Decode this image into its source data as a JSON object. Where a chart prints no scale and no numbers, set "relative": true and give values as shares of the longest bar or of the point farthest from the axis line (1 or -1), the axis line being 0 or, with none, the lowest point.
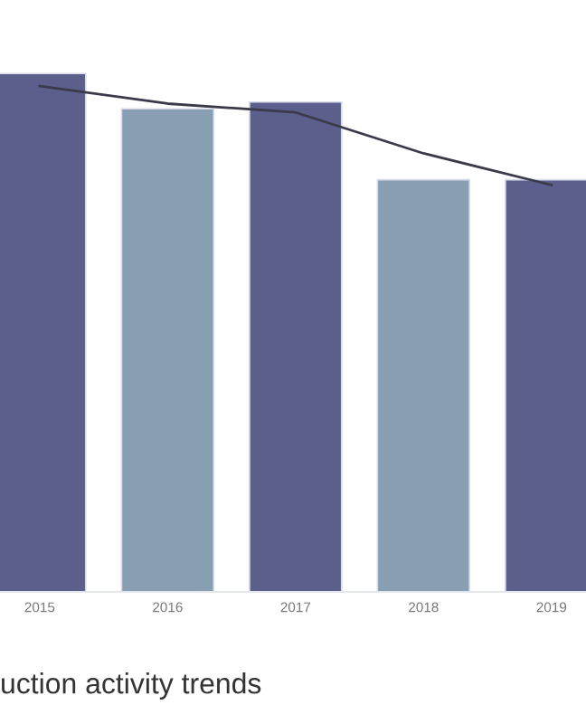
{
  "chart_data": {
    "type": "bar",
    "title": "uction activity trends",
    "relative": true,
    "categories": [
      "2015",
      "2016",
      "2017",
      "2018",
      "2019"
    ],
    "series": [
      {
        "colors": [
          "#5c5e8c",
          "#889fb3",
          "#5c5e8c",
          "#889fb3",
          "#5c5e8c"
        ],
        "values": [
          1,
          0.932,
          0.945,
          0.795,
          0.795
        ]
      },
      {
        "type": "line",
        "color": "#3a3a4a",
        "values": [
          0.976,
          0.942,
          0.925,
          0.846,
          0.785
        ]
      }
    ],
    "grid": false,
    "legend": false,
    "tick_labels": "x"
  }
}
